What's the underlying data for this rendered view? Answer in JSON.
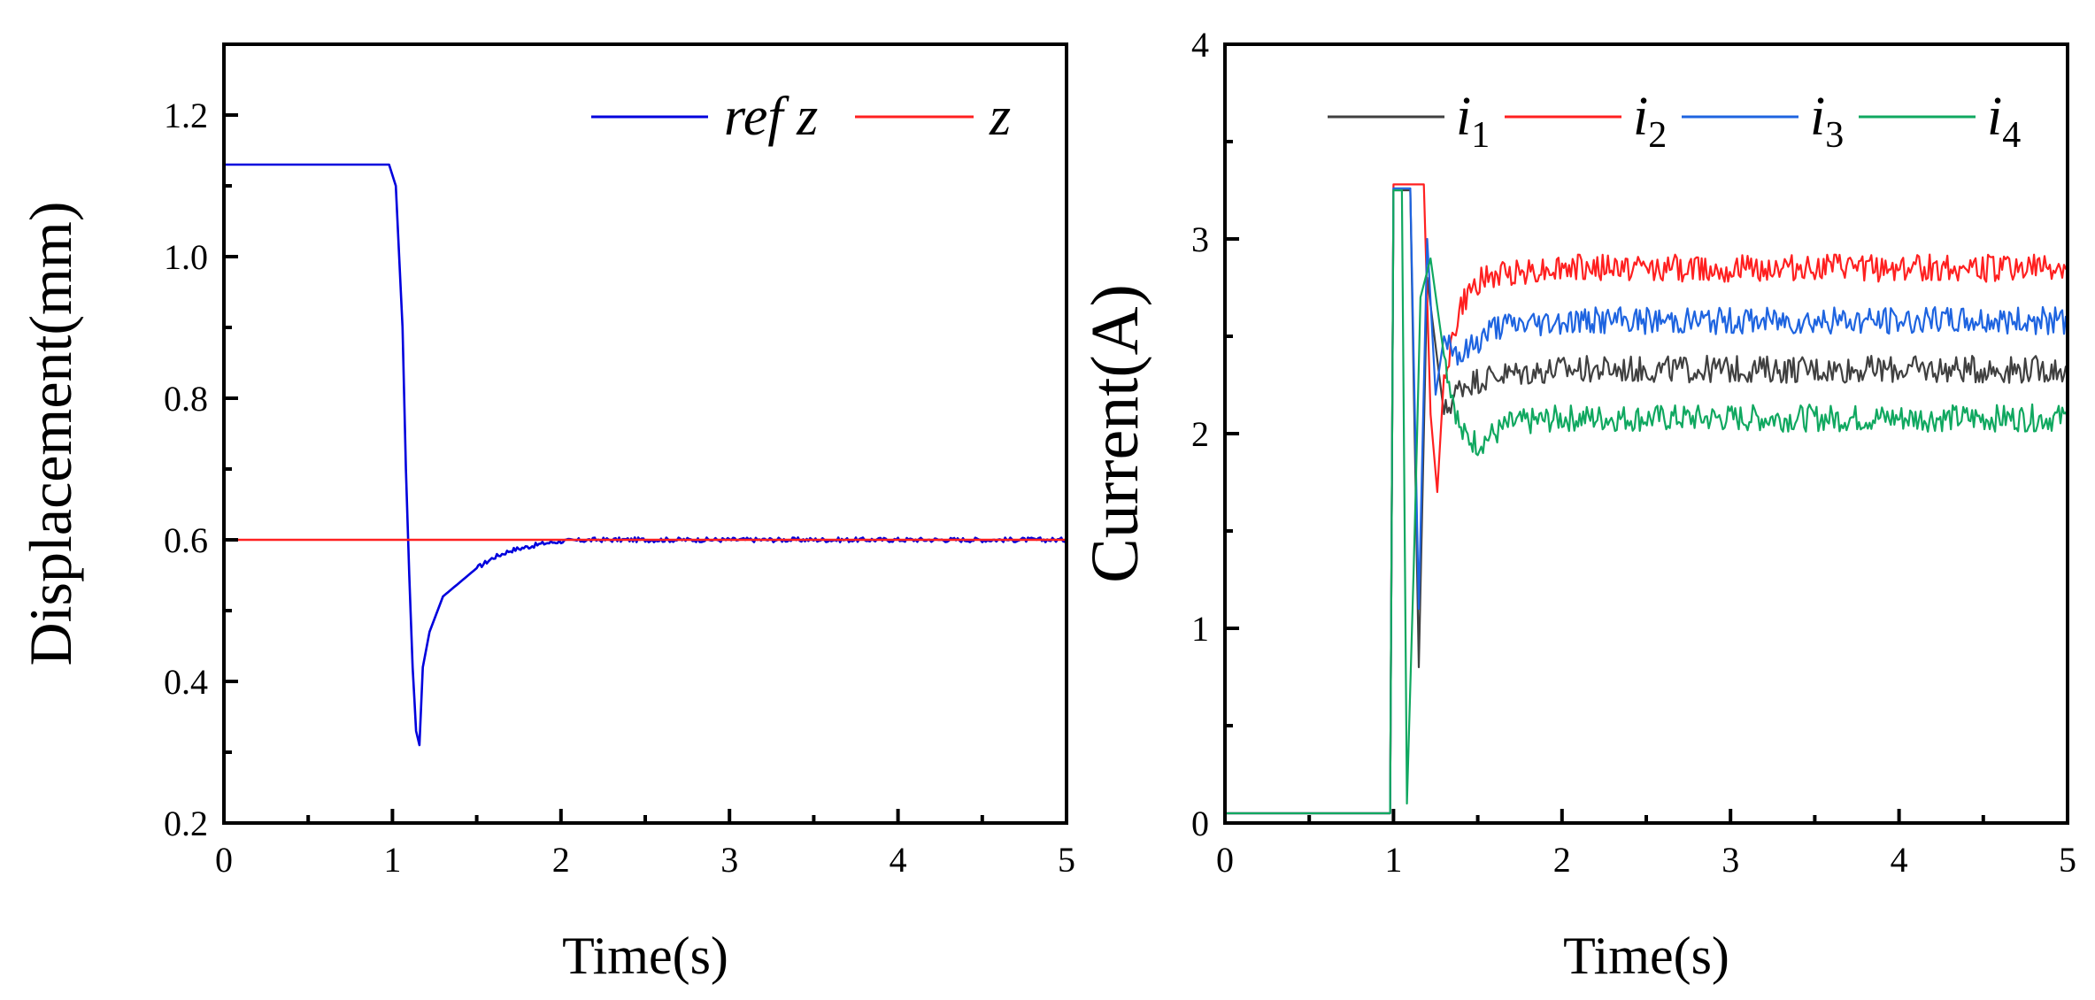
{
  "chart_data": [
    {
      "type": "line",
      "xlabel": "Time(s)",
      "ylabel": "Displacement(mm)",
      "xlim": [
        0,
        5
      ],
      "ylim": [
        0.2,
        1.3
      ],
      "xticks": [
        0,
        1,
        2,
        3,
        4,
        5
      ],
      "xtick_labels": [
        "0",
        "1",
        "2",
        "3",
        "4",
        "5"
      ],
      "yticks": [
        0.2,
        0.4,
        0.6,
        0.8,
        1.0,
        1.2
      ],
      "ytick_labels": [
        "0.2",
        "0.4",
        "0.6",
        "0.8",
        "1.0",
        "1.2"
      ],
      "legend": {
        "position": "top-right"
      },
      "series": [
        {
          "name": "ref z",
          "legend_italic": "ref z",
          "color": "#0000dd",
          "x": [
            0,
            0.5,
            0.98,
            1.02,
            1.06,
            1.08,
            1.1,
            1.12,
            1.14,
            1.16,
            1.18,
            1.22,
            1.3,
            1.4,
            1.5,
            1.6,
            1.7,
            1.8,
            1.9,
            2.0,
            2.2,
            2.5,
            3.0,
            3.5,
            4.0,
            4.5,
            5.0
          ],
          "y": [
            1.13,
            1.13,
            1.13,
            1.1,
            0.9,
            0.7,
            0.55,
            0.42,
            0.33,
            0.31,
            0.42,
            0.47,
            0.52,
            0.54,
            0.56,
            0.575,
            0.585,
            0.59,
            0.595,
            0.598,
            0.6,
            0.6,
            0.6,
            0.6,
            0.6,
            0.6,
            0.6
          ]
        },
        {
          "name": "z",
          "legend_italic": "z",
          "color": "#ff2020",
          "x": [
            0,
            5
          ],
          "y": [
            0.6,
            0.6
          ]
        }
      ]
    },
    {
      "type": "line",
      "xlabel": "Time(s)",
      "ylabel": "Current(A)",
      "xlim": [
        0,
        5
      ],
      "ylim": [
        0,
        4
      ],
      "xticks": [
        0,
        1,
        2,
        3,
        4,
        5
      ],
      "xtick_labels": [
        "0",
        "1",
        "2",
        "3",
        "4",
        "5"
      ],
      "yticks": [
        0,
        1,
        2,
        3,
        4
      ],
      "ytick_labels": [
        "0",
        "1",
        "2",
        "3",
        "4"
      ],
      "legend": {
        "position": "top"
      },
      "series": [
        {
          "name": "i1",
          "legend_main": "i",
          "legend_sub": "1",
          "color": "#404040",
          "x": [
            0,
            0.98,
            1.0,
            1.1,
            1.15,
            1.2,
            1.3,
            1.4,
            1.6,
            2.0,
            5.0
          ],
          "y": [
            0.05,
            0.05,
            3.25,
            3.25,
            0.8,
            2.8,
            2.1,
            2.25,
            2.3,
            2.33,
            2.33
          ]
        },
        {
          "name": "i2",
          "legend_main": "i",
          "legend_sub": "2",
          "color": "#ff2020",
          "x": [
            0,
            0.98,
            1.0,
            1.18,
            1.22,
            1.26,
            1.3,
            1.4,
            1.5,
            1.7,
            2.0,
            5.0
          ],
          "y": [
            0.05,
            0.05,
            3.28,
            3.28,
            2.1,
            1.7,
            2.3,
            2.65,
            2.78,
            2.83,
            2.85,
            2.85
          ]
        },
        {
          "name": "i3",
          "legend_main": "i",
          "legend_sub": "3",
          "color": "#1e64e0",
          "x": [
            0,
            0.98,
            1.0,
            1.1,
            1.15,
            1.2,
            1.25,
            1.3,
            1.4,
            1.6,
            2.0,
            5.0
          ],
          "y": [
            0.05,
            0.05,
            3.26,
            3.26,
            1.1,
            3.0,
            2.2,
            2.5,
            2.4,
            2.55,
            2.58,
            2.58
          ]
        },
        {
          "name": "i4",
          "legend_main": "i",
          "legend_sub": "4",
          "color": "#10a860",
          "x": [
            0,
            0.98,
            1.0,
            1.05,
            1.08,
            1.12,
            1.16,
            1.22,
            1.3,
            1.4,
            1.5,
            1.7,
            2.0,
            5.0
          ],
          "y": [
            0.05,
            0.05,
            3.25,
            3.25,
            0.1,
            1.3,
            2.7,
            2.9,
            2.4,
            2.0,
            1.95,
            2.05,
            2.08,
            2.08
          ]
        }
      ]
    }
  ]
}
